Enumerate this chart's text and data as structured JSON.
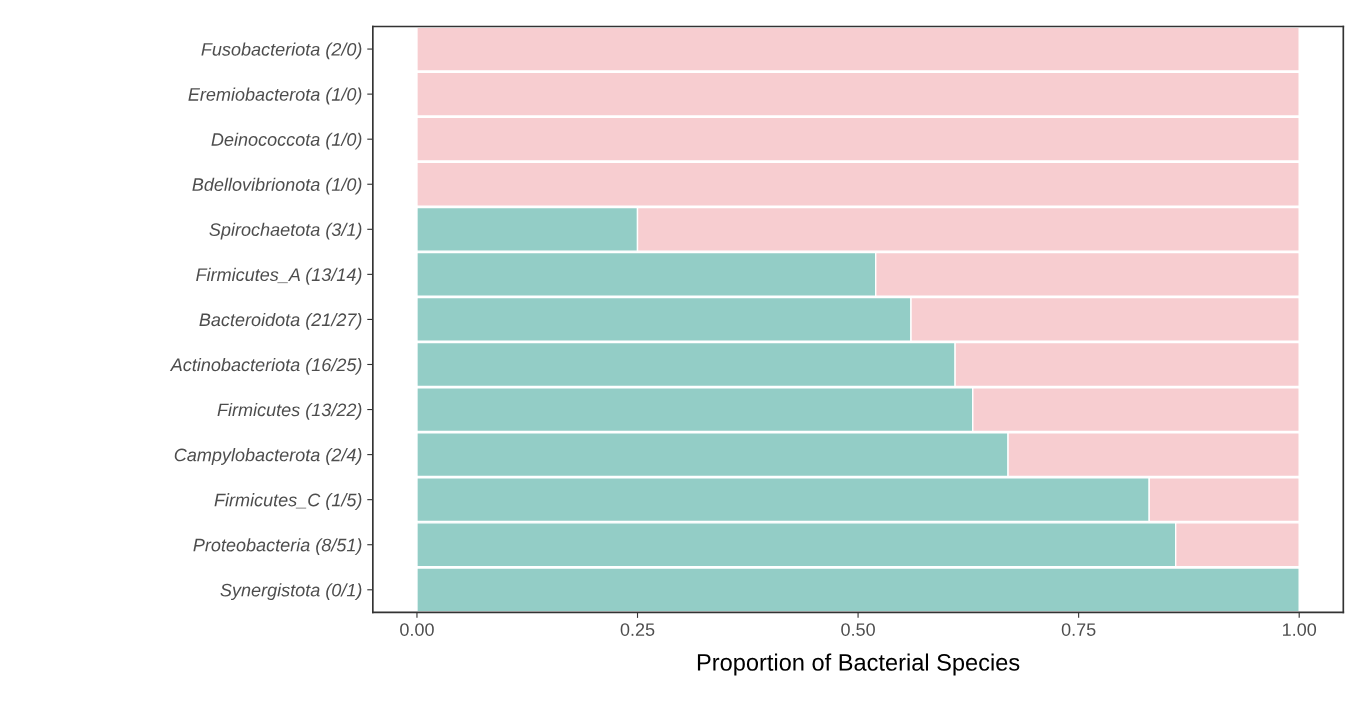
{
  "chart_data": {
    "type": "bar",
    "orientation": "horizontal",
    "stacked": true,
    "xlabel": "Proportion of Bacterial Species",
    "categories": [
      "Fusobacteriota (2/0)",
      "Eremiobacterota (1/0)",
      "Deinococcota (1/0)",
      "Bdellovibrionota (1/0)",
      "Spirochaetota (3/1)",
      "Firmicutes_A (13/14)",
      "Bacteroidota (21/27)",
      "Actinobacteriota (16/25)",
      "Firmicutes (13/22)",
      "Campylobacterota (2/4)",
      "Firmicutes_C (1/5)",
      "Proteobacteria (8/51)",
      "Synergistota (0/1)"
    ],
    "series": [
      {
        "color": "#93cdc6",
        "values": [
          null,
          null,
          null,
          null,
          0.25,
          0.52,
          0.56,
          0.61,
          0.63,
          0.67,
          0.83,
          0.86,
          1.0
        ]
      },
      {
        "color": "#f7cdd0",
        "values": [
          1.0,
          1.0,
          1.0,
          1.0,
          0.75,
          0.48,
          0.44,
          0.39,
          0.37,
          0.33,
          0.17,
          0.14,
          null
        ]
      }
    ],
    "xlim": [
      -0.05,
      1.05
    ],
    "xticks": [
      {
        "value": 0,
        "label": "0.00"
      },
      {
        "value": 0.25,
        "label": "0.25"
      },
      {
        "value": 0.5,
        "label": "0.50"
      },
      {
        "value": 0.75,
        "label": "0.75"
      },
      {
        "value": 1,
        "label": "1.00"
      }
    ],
    "grid": false
  }
}
